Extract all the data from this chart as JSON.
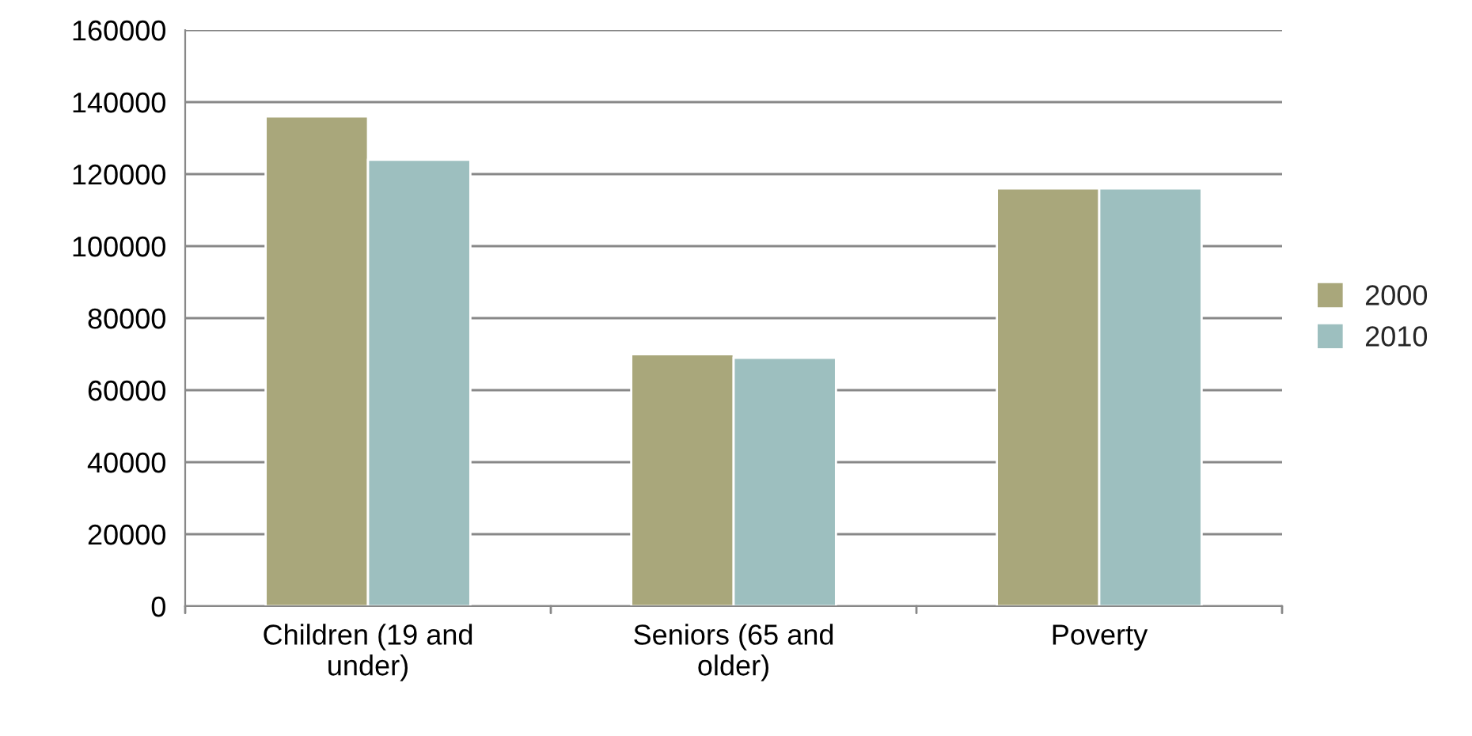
{
  "chart_data": {
    "type": "bar",
    "categories": [
      "Children (19 and\nunder)",
      "Seniors (65 and\nolder)",
      "Poverty"
    ],
    "series": [
      {
        "name": "2000",
        "color": "#a9a77b",
        "values": [
          136000,
          70000,
          116000
        ]
      },
      {
        "name": "2010",
        "color": "#9dbfbf",
        "values": [
          124000,
          69000,
          116000
        ]
      }
    ],
    "ylim": [
      0,
      160000
    ],
    "yticks": [
      0,
      20000,
      40000,
      60000,
      80000,
      100000,
      120000,
      140000,
      160000
    ],
    "grid": "y",
    "legend": "right"
  }
}
